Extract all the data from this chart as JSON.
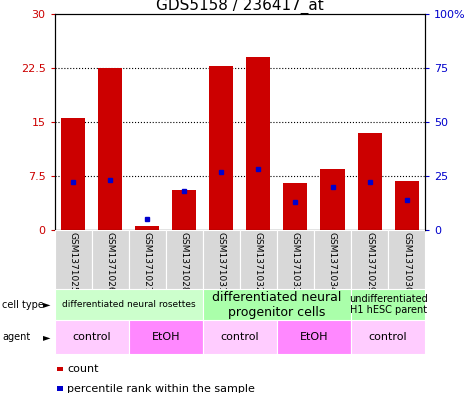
{
  "title": "GDS5158 / 236417_at",
  "samples": [
    "GSM1371025",
    "GSM1371026",
    "GSM1371027",
    "GSM1371028",
    "GSM1371031",
    "GSM1371032",
    "GSM1371033",
    "GSM1371034",
    "GSM1371029",
    "GSM1371030"
  ],
  "counts": [
    15.5,
    22.5,
    0.6,
    5.5,
    22.8,
    24.0,
    6.5,
    8.5,
    13.5,
    6.8
  ],
  "percentile_ranks": [
    22,
    23,
    5,
    18,
    27,
    28,
    13,
    20,
    22,
    14
  ],
  "ylim_left": [
    0,
    30
  ],
  "ylim_right": [
    0,
    100
  ],
  "yticks_left": [
    0,
    7.5,
    15,
    22.5,
    30
  ],
  "yticks_right": [
    0,
    25,
    50,
    75,
    100
  ],
  "ytick_labels_left": [
    "0",
    "7.5",
    "15",
    "22.5",
    "30"
  ],
  "ytick_labels_right": [
    "0",
    "25",
    "50",
    "75",
    "100%"
  ],
  "bar_color": "#cc0000",
  "dot_color": "#0000cc",
  "cell_type_groups": [
    {
      "label": "differentiated neural rosettes",
      "start": 0,
      "end": 3,
      "color": "#ccffcc",
      "fontsize": 6.5
    },
    {
      "label": "differentiated neural\nprogenitor cells",
      "start": 4,
      "end": 7,
      "color": "#aaffaa",
      "fontsize": 9
    },
    {
      "label": "undifferentiated\nH1 hESC parent",
      "start": 8,
      "end": 9,
      "color": "#aaffaa",
      "fontsize": 7
    }
  ],
  "agent_groups": [
    {
      "label": "control",
      "start": 0,
      "end": 1,
      "color": "#ffccff"
    },
    {
      "label": "EtOH",
      "start": 2,
      "end": 3,
      "color": "#ff88ff"
    },
    {
      "label": "control",
      "start": 4,
      "end": 5,
      "color": "#ffccff"
    },
    {
      "label": "EtOH",
      "start": 6,
      "end": 7,
      "color": "#ff88ff"
    },
    {
      "label": "control",
      "start": 8,
      "end": 9,
      "color": "#ffccff"
    }
  ],
  "bar_width": 0.65,
  "title_fontsize": 11,
  "tick_fontsize": 8,
  "xlabels_fontsize": 6.5
}
